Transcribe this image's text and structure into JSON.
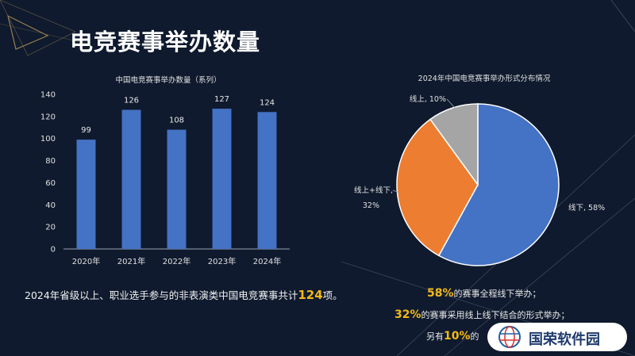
{
  "slide": {
    "title": "电竞赛事举办数量",
    "caption_pre": "2024年省级以上、职业选手参与的非表演类中国电竞赛事共计",
    "caption_num": "124",
    "caption_post": "项。",
    "notes": [
      {
        "pct": "58%",
        "text": "的赛事全程线下举办；"
      },
      {
        "pct": "32%",
        "text": "的赛事采用线上线下结合的形式举办；"
      },
      {
        "prefix": "另有",
        "pct": "10%",
        "text": "的"
      }
    ],
    "logo_text": "国荣软件园"
  },
  "chart_data": [
    {
      "type": "bar",
      "title": "中国电竞赛事举办数量（系列）",
      "categories": [
        "2020年",
        "2021年",
        "2022年",
        "2023年",
        "2024年"
      ],
      "values": [
        99,
        126,
        108,
        127,
        124
      ],
      "ylim": [
        0,
        140
      ],
      "yticks": [
        0,
        20,
        40,
        60,
        80,
        100,
        120,
        140
      ],
      "color": "#4472c4",
      "grid": false
    },
    {
      "type": "pie",
      "title": "2024年中国电竞赛事举办形式分布情况",
      "slices": [
        {
          "label": "线下",
          "value": 58,
          "text": "线下, 58%",
          "color": "#4472c4"
        },
        {
          "label": "线上+线下",
          "value": 32,
          "text1": "线上+线下,",
          "text2": "32%",
          "color": "#ed7d31"
        },
        {
          "label": "线上",
          "value": 10,
          "text": "线上, 10%",
          "color": "#a5a5a5"
        }
      ]
    }
  ]
}
